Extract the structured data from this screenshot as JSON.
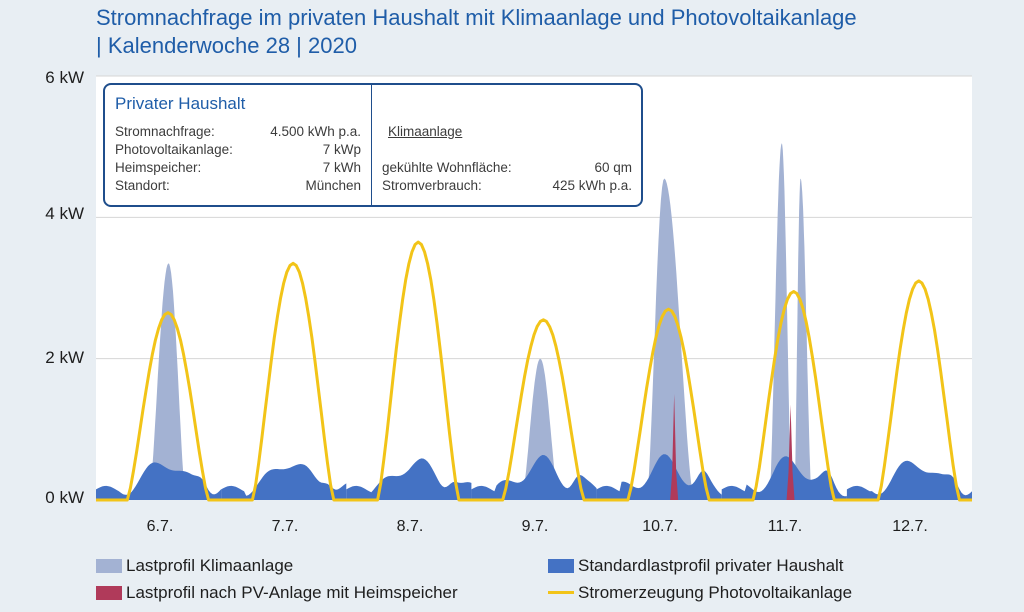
{
  "title": {
    "line1": "Stromnachfrage im privaten Haushalt mit Klimaanlage und Photovoltaikanlage",
    "line2": "| Kalenderwoche 28 | 2020"
  },
  "infobox": {
    "title": "Privater Haushalt",
    "rows": [
      {
        "label": "Stromnachfrage:",
        "value": "4.500 kWh p.a."
      },
      {
        "label": "Photovoltaikanlage:",
        "value": "7 kWp"
      },
      {
        "label": "Heimspeicher:",
        "value": "7 kWh"
      },
      {
        "label": "Standort:",
        "value": "München"
      }
    ],
    "ac_title": "Klimaanlage",
    "ac_rows": [
      {
        "label": "gekühlte Wohnfläche:",
        "value": "60 qm"
      },
      {
        "label": "Stromverbrauch:",
        "value": "425 kWh p.a."
      }
    ]
  },
  "colors": {
    "aircon": "#a3b2d3",
    "household": "#4472c4",
    "residual": "#b03a5a",
    "pv": "#f2c418",
    "grid": "#d6d6d6"
  },
  "chart_data": {
    "type": "area",
    "title": "Stromnachfrage im privaten Haushalt mit Klimaanlage und Photovoltaikanlage | Kalenderwoche 28 | 2020",
    "ylabel": "kW",
    "ylim": [
      0,
      6
    ],
    "yticks": [
      "0 kW",
      "2 kW",
      "4 kW",
      "6 kW"
    ],
    "categories": [
      "6.7.",
      "7.7.",
      "8.7.",
      "9.7.",
      "10.7.",
      "11.7.",
      "12.7."
    ],
    "legend_position": "bottom",
    "series": [
      {
        "name": "Lastprofil Klimaanlage",
        "kind": "area",
        "peaks": [
          {
            "day": 0,
            "start": 0.42,
            "end": 0.72,
            "peak": 3.35,
            "at": 0.58
          },
          {
            "day": 3,
            "start": 0.4,
            "end": 0.7,
            "peak": 2.0,
            "at": 0.55
          },
          {
            "day": 4,
            "start": 0.4,
            "end": 0.78,
            "peak": 4.55,
            "at": 0.54
          },
          {
            "day": 5,
            "start": 0.38,
            "end": 0.56,
            "peak": 5.05,
            "at": 0.48
          },
          {
            "day": 5,
            "start": 0.58,
            "end": 0.72,
            "peak": 4.55,
            "at": 0.63
          }
        ]
      },
      {
        "name": "Standardlastprofil privater Haushalt",
        "kind": "area",
        "base_kw": 0.15,
        "peak_kw": 0.55
      },
      {
        "name": "Lastprofil nach PV-Anlage mit Heimspeicher",
        "kind": "spikes",
        "spikes": [
          {
            "day": 4,
            "at": 0.62,
            "value": 1.5
          },
          {
            "day": 5,
            "at": 0.55,
            "value": 1.35
          }
        ]
      },
      {
        "name": "Stromerzeugung Photovoltaikanlage",
        "kind": "line",
        "daily_peak_kw": [
          2.65,
          3.35,
          3.65,
          2.55,
          2.7,
          2.95,
          3.1
        ]
      }
    ]
  },
  "legend": [
    {
      "label": "Lastprofil Klimaanlage"
    },
    {
      "label": "Standardlastprofil privater Haushalt"
    },
    {
      "label": "Lastprofil nach PV-Anlage mit Heimspeicher"
    },
    {
      "label": "Stromerzeugung Photovoltaikanlage"
    }
  ]
}
